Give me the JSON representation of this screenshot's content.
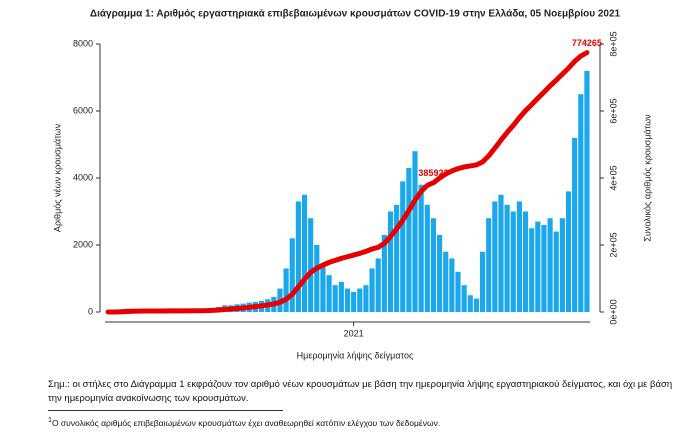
{
  "chart_data": {
    "type": "bar",
    "title": "Διάγραμμα 1: Αριθμός εργαστηριακά επιβεβαιωμένων κρουσμάτων COVID-19 στην Ελλάδα, 05 Νοεμβρίου 2021",
    "xlabel": "Ημερομηνία λήψης δείγματος",
    "ylabel": "Αριθμός νέων κρουσμάτων",
    "y2label": "Συνολικός αριθμός κρουσμάτων",
    "categories": [
      null,
      null,
      null,
      null,
      null,
      null,
      null,
      null,
      null,
      null,
      null,
      null,
      null,
      null,
      null,
      null,
      null,
      null,
      null,
      null,
      null,
      null,
      null,
      null,
      null,
      null,
      null,
      null,
      null,
      null,
      null,
      null,
      null,
      null,
      null,
      null,
      null,
      null,
      null,
      null,
      "2021",
      null,
      null,
      null,
      null,
      null,
      null,
      null,
      null,
      null,
      null,
      null,
      null,
      null,
      null,
      null,
      null,
      null,
      null,
      null,
      null,
      null,
      null,
      null,
      null,
      null,
      null,
      null,
      null,
      null,
      null,
      null,
      null,
      null,
      null,
      null,
      null,
      null,
      null
    ],
    "series": [
      {
        "type": "bar",
        "color": "#1aa7ec",
        "values": [
          5,
          30,
          80,
          100,
          60,
          30,
          15,
          10,
          5,
          5,
          5,
          5,
          10,
          15,
          20,
          30,
          40,
          100,
          150,
          200,
          200,
          230,
          250,
          280,
          300,
          330,
          380,
          450,
          700,
          1300,
          2200,
          3300,
          3500,
          2800,
          2000,
          1400,
          1100,
          800,
          900,
          700,
          600,
          700,
          800,
          1300,
          1600,
          2300,
          3000,
          3200,
          3900,
          4300,
          4800,
          3800,
          3200,
          2800,
          2300,
          1800,
          1600,
          1200,
          800,
          500,
          400,
          1800,
          2800,
          3300,
          3500,
          3200,
          3000,
          3300,
          3000,
          2500,
          2700,
          2600,
          2800,
          2400,
          2800,
          3600,
          5200,
          6500,
          7200
        ]
      },
      {
        "type": "line",
        "axis": "y2",
        "color": "#e60000",
        "values": [
          0,
          100,
          500,
          1500,
          2200,
          2600,
          2800,
          2900,
          3000,
          3100,
          3200,
          3300,
          3400,
          3500,
          3700,
          3900,
          4200,
          5000,
          6000,
          7500,
          9000,
          10500,
          12000,
          14000,
          16000,
          18500,
          21000,
          24000,
          29000,
          38000,
          53000,
          75000,
          98000,
          118000,
          131000,
          140000,
          148000,
          154000,
          160000,
          165000,
          170000,
          175000,
          181000,
          188000,
          193000,
          205000,
          225000,
          248000,
          274000,
          303000,
          334000,
          360000,
          378000,
          385923,
          400000,
          412000,
          421000,
          428000,
          433000,
          436000,
          439000,
          448000,
          466000,
          489000,
          513000,
          536000,
          557000,
          580000,
          601000,
          619000,
          638000,
          656000,
          675000,
          692000,
          710000,
          728000,
          748000,
          764000,
          774265
        ],
        "value_labels": [
          null,
          null,
          null,
          null,
          null,
          null,
          null,
          null,
          null,
          null,
          null,
          null,
          null,
          null,
          null,
          null,
          null,
          null,
          null,
          null,
          null,
          null,
          null,
          null,
          null,
          null,
          null,
          null,
          null,
          null,
          null,
          null,
          null,
          null,
          null,
          null,
          null,
          null,
          null,
          null,
          null,
          null,
          null,
          null,
          null,
          null,
          null,
          null,
          null,
          null,
          null,
          null,
          null,
          "385923",
          null,
          null,
          null,
          null,
          null,
          null,
          null,
          null,
          null,
          null,
          null,
          null,
          null,
          null,
          null,
          null,
          null,
          null,
          null,
          null,
          null,
          null,
          null,
          null,
          "774265"
        ]
      }
    ],
    "ylim": [
      0,
      8000
    ],
    "yticks": [
      0,
      2000,
      4000,
      6000,
      8000
    ],
    "y2lim": [
      0,
      800000
    ],
    "y2ticks": [
      {
        "value": 0,
        "label": "0e+00"
      },
      {
        "value": 200000,
        "label": "2e+05"
      },
      {
        "value": 400000,
        "label": "4e+05"
      },
      {
        "value": 600000,
        "label": "6e+05"
      },
      {
        "value": 800000,
        "label": "8e+05"
      }
    ]
  },
  "notes": {
    "text": "Σημ.: οι στήλες στο Διάγραμμα 1 εκφράζουν τον αριθμό νέων κρουσμάτων με βάση την ημερομηνία λήψης εργαστηριακού δείγματος, και όχι με βάση την ημερομηνία ανακοίνωσης των κρουσμάτων.",
    "footnote_marker": "1",
    "footnote": "Ο συνολικός αριθμός επιβεβαιωμένων κρουσμάτων έχει αναθεωρηθεί κατόπιν ελέγχου των δεδομένων."
  }
}
